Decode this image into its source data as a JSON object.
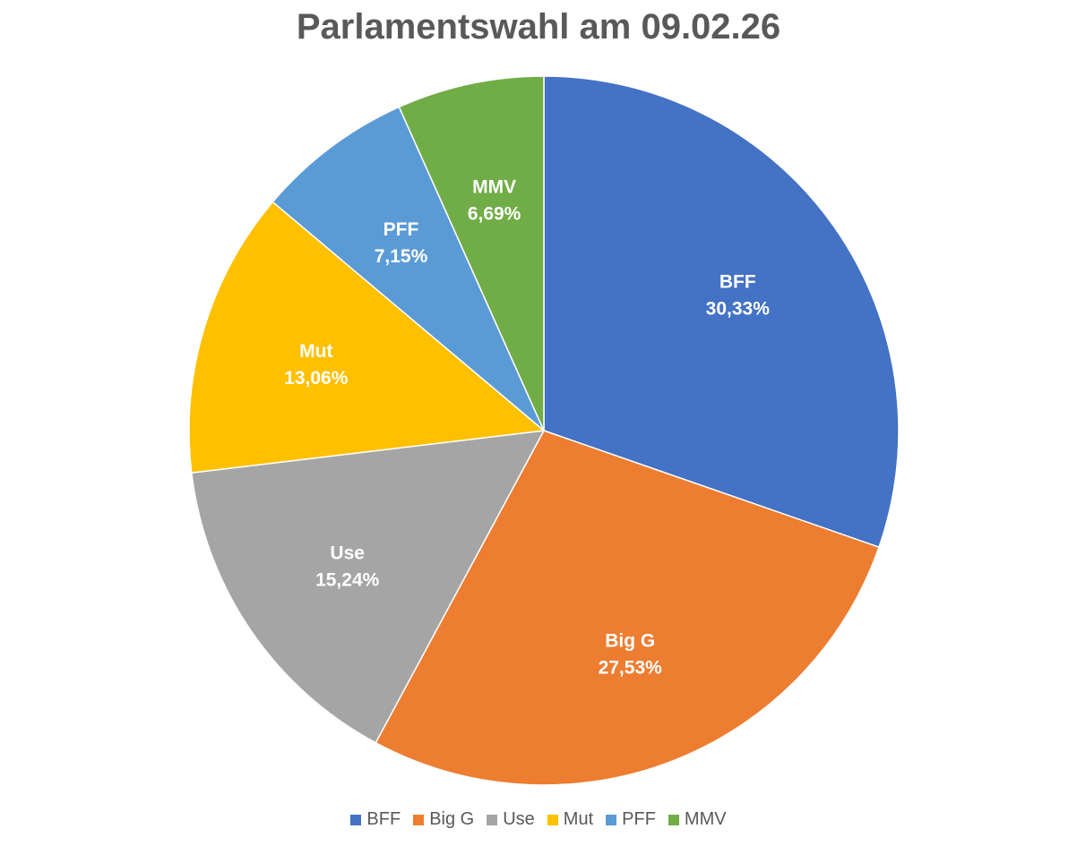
{
  "chart_data": {
    "type": "pie",
    "title": "Parlamentswahl am 09.02.26",
    "slices": [
      {
        "label": "BFF",
        "value": 30.33,
        "value_text": "30,33%",
        "color": "#4472C4"
      },
      {
        "label": "Big G",
        "value": 27.53,
        "value_text": "27,53%",
        "color": "#ED7D31"
      },
      {
        "label": "Use",
        "value": 15.24,
        "value_text": "15,24%",
        "color": "#A5A5A5"
      },
      {
        "label": "Mut",
        "value": 13.06,
        "value_text": "13,06%",
        "color": "#FFC000"
      },
      {
        "label": "PFF",
        "value": 7.15,
        "value_text": "7,15%",
        "color": "#5B9BD5"
      },
      {
        "label": "MMV",
        "value": 6.69,
        "value_text": "6,69%",
        "color": "#70AD47"
      }
    ],
    "start": "12 o'clock",
    "direction": "clockwise",
    "legend_position": "bottom"
  }
}
